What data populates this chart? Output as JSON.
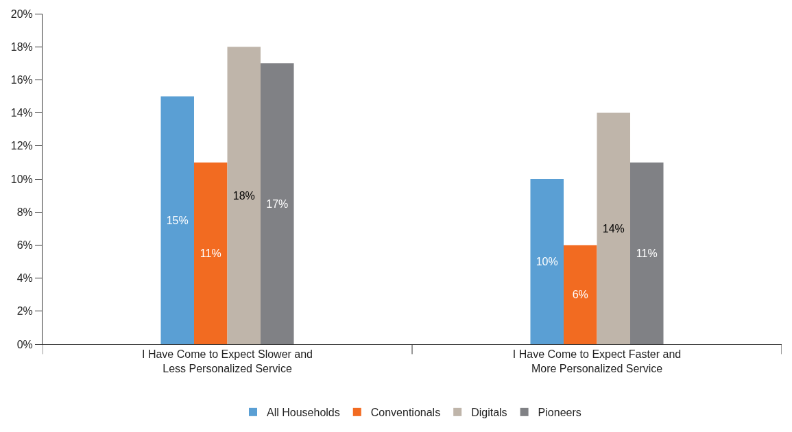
{
  "chart_data": {
    "type": "bar",
    "categories": [
      "I Have Come to Expect Slower and Less Personalized Service",
      "I Have Come to Expect Faster and More Personalized Service"
    ],
    "series": [
      {
        "name": "All Households",
        "color": "#5a9fd4",
        "values": [
          15,
          10
        ],
        "value_labels": [
          "15%",
          "10%"
        ]
      },
      {
        "name": "Conventionals",
        "color": "#f26b21",
        "values": [
          11,
          6
        ],
        "value_labels": [
          "11%",
          "6%"
        ]
      },
      {
        "name": "Digitals",
        "color": "#bfb5aa",
        "values": [
          18,
          14
        ],
        "value_labels": [
          "18%",
          "14%"
        ]
      },
      {
        "name": "Pioneers",
        "color": "#808185",
        "values": [
          17,
          11
        ],
        "value_labels": [
          "17%",
          "11%"
        ]
      }
    ],
    "ylim": [
      0,
      20
    ],
    "yticks": [
      {
        "value": 0,
        "label": "0%"
      },
      {
        "value": 2,
        "label": "2%"
      },
      {
        "value": 4,
        "label": "4%"
      },
      {
        "value": 6,
        "label": "6%"
      },
      {
        "value": 8,
        "label": "8%"
      },
      {
        "value": 10,
        "label": "10%"
      },
      {
        "value": 12,
        "label": "12%"
      },
      {
        "value": 14,
        "label": "14%"
      },
      {
        "value": 16,
        "label": "16%"
      },
      {
        "value": 18,
        "label": "18%"
      },
      {
        "value": 20,
        "label": "20%"
      }
    ],
    "legend": "bottom"
  }
}
